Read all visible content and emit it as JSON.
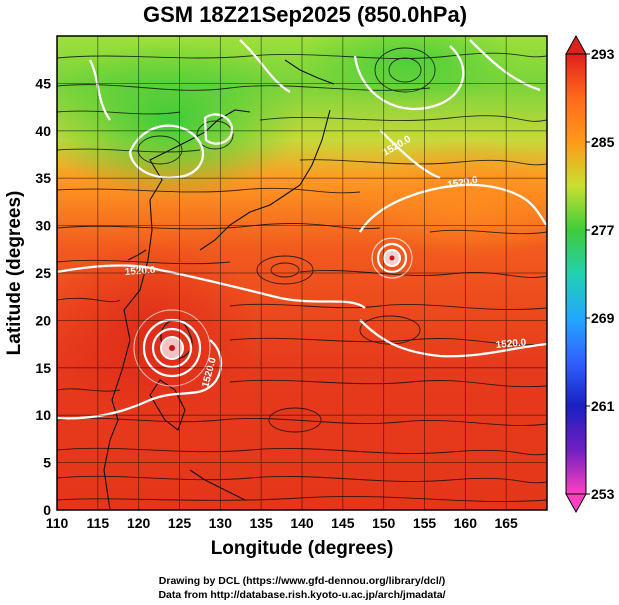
{
  "title": "GSM 18Z21Sep2025 (850.0hPa)",
  "xlabel": "Longitude (degrees)",
  "ylabel": "Latitude (degrees)",
  "x_ticks": [
    "110",
    "115",
    "120",
    "125",
    "130",
    "135",
    "140",
    "145",
    "150",
    "155",
    "160",
    "165"
  ],
  "y_ticks": [
    "0",
    "5",
    "10",
    "15",
    "20",
    "25",
    "30",
    "35",
    "40",
    "45"
  ],
  "colorbar_ticks": [
    "293",
    "285",
    "277",
    "269",
    "261",
    "253"
  ],
  "contour_labels": [
    "1520.0",
    "1520.0",
    "1520.0",
    "1520.0",
    "1520.0"
  ],
  "credit_line1": "Drawing by DCL (https://www.gfd-dennou.org/library/dcl/)",
  "credit_line2": "Data from http://database.rish.kyoto-u.ac.jp/arch/jmadata/",
  "chart_data": {
    "type": "heatmap",
    "x_range": [
      110,
      170
    ],
    "y_range": [
      0,
      50
    ],
    "colorbar_range": [
      253,
      293
    ],
    "grid": true,
    "features": [
      {
        "kind": "cyclone",
        "lon": 124,
        "lat": 19
      },
      {
        "kind": "cyclone",
        "lon": 150.5,
        "lat": 29
      }
    ]
  },
  "colors": {
    "warm": "#e0301e",
    "mid": "#ff7a1a",
    "cool_green": "#55d43a",
    "contour": "#ffffff"
  }
}
